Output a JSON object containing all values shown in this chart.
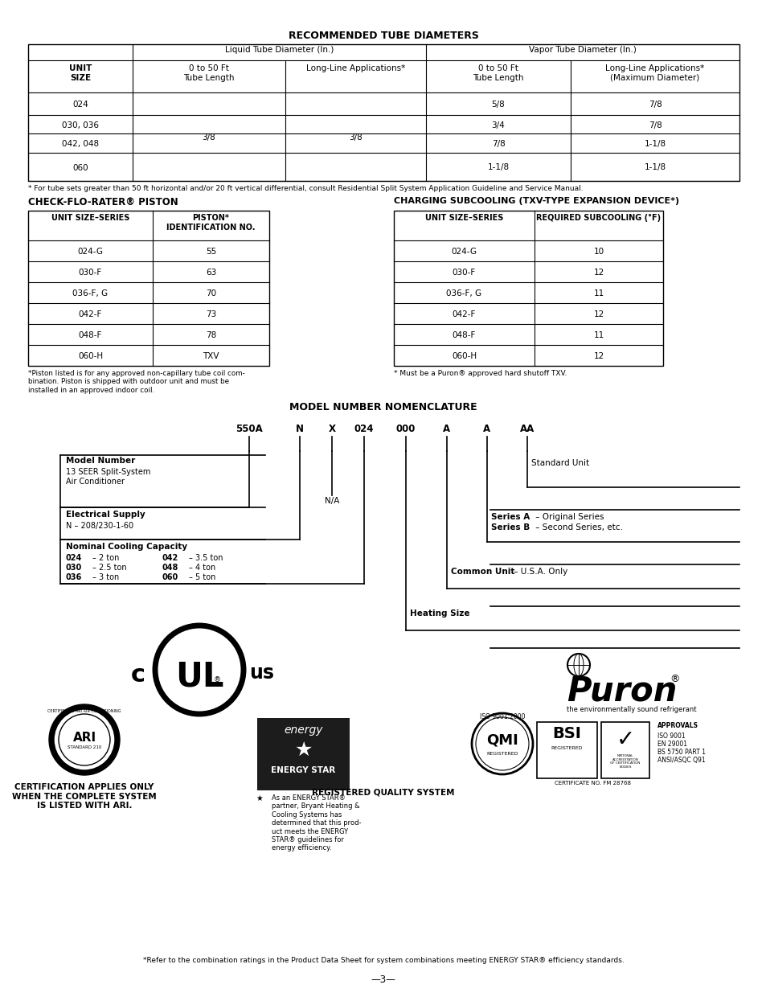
{
  "bg_color": "#ffffff",
  "page_width": 9.54,
  "page_height": 12.35,
  "title1": "RECOMMENDED TUBE DIAMETERS",
  "tube_table_footnote": "* For tube sets greater than 50 ft horizontal and/or 20 ft vertical differential, consult Residential Split System Application Guideline and Service Manual.",
  "piston_title": "CHECK-FLO-RATER® PISTON",
  "piston_rows": [
    [
      "024-G",
      "55"
    ],
    [
      "030-F",
      "63"
    ],
    [
      "036-F, G",
      "70"
    ],
    [
      "042-F",
      "73"
    ],
    [
      "048-F",
      "78"
    ],
    [
      "060-H",
      "TXV"
    ]
  ],
  "piston_footnote": "*Piston listed is for any approved non-capillary tube coil com-\nbination. Piston is shipped with outdoor unit and must be\ninstalled in an approved indoor coil.",
  "subcooling_title": "CHARGING SUBCOOLING (TXV-TYPE EXPANSION DEVICE*)",
  "subcooling_rows": [
    [
      "024-G",
      "10"
    ],
    [
      "030-F",
      "12"
    ],
    [
      "036-F, G",
      "11"
    ],
    [
      "042-F",
      "12"
    ],
    [
      "048-F",
      "11"
    ],
    [
      "060-H",
      "12"
    ]
  ],
  "subcooling_footnote": "* Must be a Puron® approved hard shutoff TXV.",
  "nomenclature_title": "MODEL NUMBER NOMENCLATURE",
  "model_parts": [
    "550A",
    "N",
    "X",
    "024",
    "000",
    "A",
    "A",
    "AA"
  ],
  "cert_text": "CERTIFICATION APPLIES ONLY\nWHEN THE COMPLETE SYSTEM\nIS LISTED WITH ARI.",
  "energy_text": "As an ENERGY STAR®\npartner, Bryant Heating &\nCooling Systems has\ndetermined that this prod-\nuct meets the ENERGY\nSTAR® guidelines for\nenergy efficiency.",
  "registered_text": "REGISTERED QUALITY SYSTEM",
  "footer_note": "*Refer to the combination ratings in the Product Data Sheet for system combinations meeting ENERGY STAR® efficiency standards.",
  "page_num": "—3—"
}
